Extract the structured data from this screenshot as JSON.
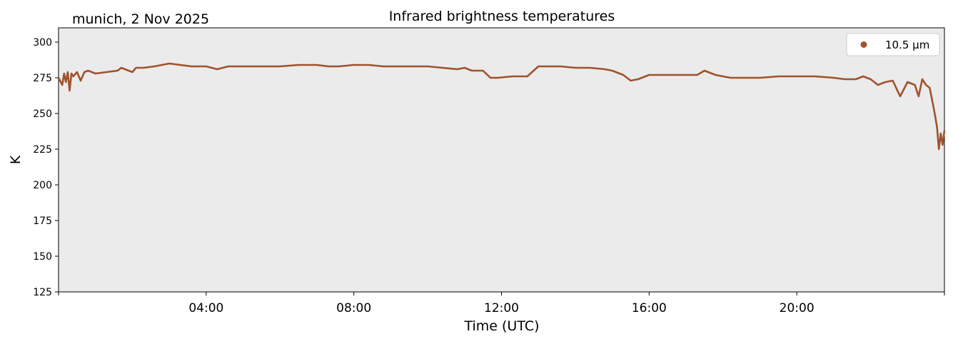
{
  "chart_data": {
    "type": "line",
    "title": "Infrared brightness temperatures",
    "subtitle": "munich, 2 Nov 2025",
    "xlabel": "Time (UTC)",
    "ylabel": "K",
    "xlim_hours": [
      0,
      24
    ],
    "ylim": [
      125,
      310
    ],
    "x_tick_hours": [
      4,
      8,
      12,
      16,
      20
    ],
    "x_tick_labels": [
      "04:00",
      "08:00",
      "12:00",
      "16:00",
      "20:00"
    ],
    "y_ticks": [
      125,
      150,
      175,
      200,
      225,
      250,
      275,
      300
    ],
    "legend_position": "top-right",
    "grid": false,
    "background": "#ebebeb",
    "series": [
      {
        "name": "10.5 µm",
        "color": "#a0522d",
        "x_hours": [
          0.0,
          0.1,
          0.15,
          0.2,
          0.25,
          0.3,
          0.35,
          0.4,
          0.5,
          0.6,
          0.7,
          0.8,
          1.0,
          1.3,
          1.6,
          1.7,
          1.8,
          2.0,
          2.1,
          2.3,
          2.6,
          3.0,
          3.3,
          3.6,
          4.0,
          4.3,
          4.6,
          5.0,
          5.5,
          6.0,
          6.5,
          7.0,
          7.3,
          7.6,
          8.0,
          8.4,
          8.8,
          9.2,
          9.6,
          10.0,
          10.4,
          10.8,
          11.0,
          11.2,
          11.5,
          11.7,
          11.9,
          12.3,
          12.5,
          12.7,
          13.0,
          13.3,
          13.6,
          14.0,
          14.4,
          14.8,
          15.0,
          15.3,
          15.5,
          15.7,
          16.0,
          16.5,
          17.0,
          17.3,
          17.5,
          17.8,
          18.2,
          18.6,
          19.0,
          19.5,
          20.0,
          20.5,
          21.0,
          21.3,
          21.6,
          21.8,
          22.0,
          22.2,
          22.4,
          22.6,
          22.8,
          23.0,
          23.2,
          23.3,
          23.4,
          23.5,
          23.6,
          23.7,
          23.75,
          23.8,
          23.85,
          23.9,
          23.95,
          24.0
        ],
        "values": [
          275,
          270,
          278,
          272,
          279,
          266,
          278,
          276,
          279,
          273,
          279,
          280,
          278,
          279,
          280,
          282,
          281,
          279,
          282,
          282,
          283,
          285,
          284,
          283,
          283,
          281,
          283,
          283,
          283,
          283,
          284,
          284,
          283,
          283,
          284,
          284,
          283,
          283,
          283,
          283,
          282,
          281,
          282,
          280,
          280,
          275,
          275,
          276,
          276,
          276,
          283,
          283,
          283,
          282,
          282,
          281,
          280,
          277,
          273,
          274,
          277,
          277,
          277,
          277,
          280,
          277,
          275,
          275,
          275,
          276,
          276,
          276,
          275,
          274,
          274,
          276,
          274,
          270,
          272,
          273,
          262,
          272,
          270,
          262,
          274,
          270,
          268,
          255,
          248,
          240,
          225,
          236,
          228,
          238
        ]
      }
    ]
  }
}
